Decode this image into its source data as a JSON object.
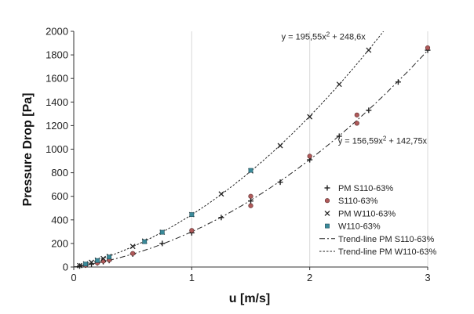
{
  "chart_data": {
    "type": "scatter",
    "xlabel": "u [m/s]",
    "ylabel": "Pressure Drop [Pa]",
    "xlim": [
      0,
      3
    ],
    "ylim": [
      0,
      2000
    ],
    "x_ticks": [
      "0",
      "1",
      "2",
      "3"
    ],
    "y_ticks": [
      "0",
      "200",
      "400",
      "600",
      "800",
      "1000",
      "1200",
      "1400",
      "1600",
      "1800",
      "2000"
    ],
    "grid": "vertical",
    "legend_position": "bottom-right",
    "series": [
      {
        "name": "PM S110-63%",
        "marker": "plus",
        "color": "#222222",
        "x": [
          0.05,
          0.1,
          0.15,
          0.2,
          0.25,
          0.3,
          0.5,
          0.75,
          1.0,
          1.25,
          1.5,
          1.75,
          2.0,
          2.25,
          2.5,
          2.75,
          3.0
        ],
        "y": [
          8,
          16,
          25,
          35,
          45,
          55,
          110,
          200,
          290,
          420,
          560,
          720,
          910,
          1110,
          1330,
          1570,
          1840
        ]
      },
      {
        "name": "S110-63%",
        "marker": "circle",
        "color": "#b05a5a",
        "x": [
          0.1,
          0.2,
          0.25,
          0.3,
          0.5,
          1.0,
          1.5,
          1.5,
          2.0,
          2.4,
          2.4,
          3.0
        ],
        "y": [
          15,
          35,
          50,
          60,
          115,
          310,
          520,
          600,
          940,
          1220,
          1290,
          1860
        ]
      },
      {
        "name": "PM W110-63%",
        "marker": "x",
        "color": "#222222",
        "x": [
          0.05,
          0.1,
          0.15,
          0.2,
          0.25,
          0.3,
          0.5,
          0.6,
          0.75,
          1.0,
          1.25,
          1.5,
          1.75,
          2.0,
          2.25,
          2.5
        ],
        "y": [
          12,
          27,
          40,
          58,
          72,
          90,
          175,
          220,
          295,
          445,
          620,
          815,
          1030,
          1275,
          1550,
          1840
        ]
      },
      {
        "name": "W110-63%",
        "marker": "square",
        "color": "#3a8a9a",
        "x": [
          0.1,
          0.2,
          0.3,
          0.6,
          0.75,
          1.0,
          1.5
        ],
        "y": [
          25,
          55,
          85,
          215,
          295,
          445,
          820
        ]
      },
      {
        "name": "Trend-line PM S110-63%",
        "type": "line",
        "style": "dash-dot",
        "color": "#222222",
        "a": 156.59,
        "b": 142.75
      },
      {
        "name": "Trend-line PM W110-63%",
        "type": "line",
        "style": "dotted",
        "color": "#222222",
        "a": 195.55,
        "b": 248.6
      }
    ],
    "annotations": [
      {
        "id": "eq-w",
        "pre": "y = 195,55x",
        "sup": "2",
        "post": " + 248,6x",
        "x": 1.76,
        "y": 1930
      },
      {
        "id": "eq-s",
        "pre": "y = 156,59x",
        "sup": "2",
        "post": " + 142,75x",
        "x": 2.24,
        "y": 1045
      }
    ]
  }
}
